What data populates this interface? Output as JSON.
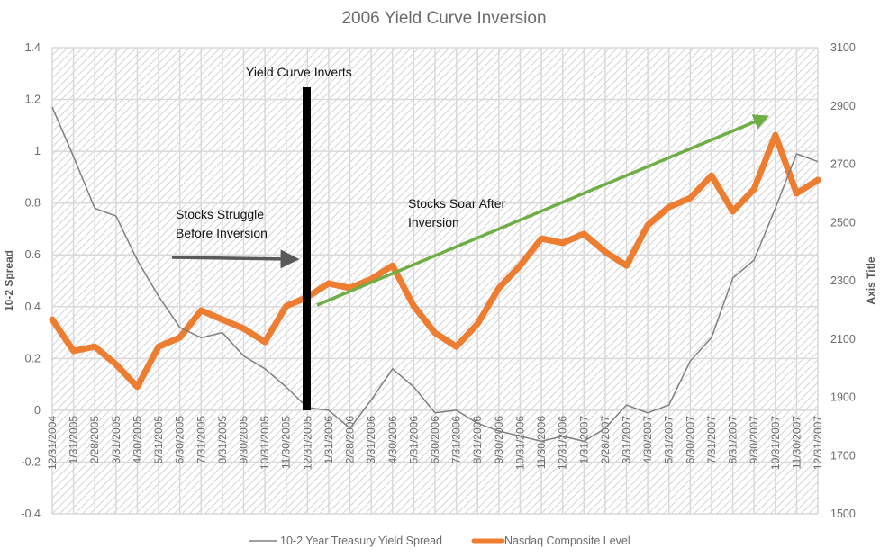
{
  "chart_data": {
    "type": "line",
    "title": "2006 Yield Curve Inversion",
    "xlabel": "",
    "ylabel": "10-2 Spread",
    "y2label": "Axis Title",
    "ylim": [
      -0.4,
      1.4
    ],
    "y2lim": [
      1500,
      3100
    ],
    "yticks": [
      "1.4",
      "1.2",
      "1",
      "0.8",
      "0.6",
      "0.4",
      "0.2",
      "0",
      "-0.2",
      "-0.4"
    ],
    "y2ticks": [
      "3100",
      "2900",
      "2700",
      "2500",
      "2300",
      "2100",
      "1900",
      "1700",
      "1500"
    ],
    "grid": true,
    "legend_position": "bottom",
    "x": [
      "12/31/2004",
      "1/31/2005",
      "2/28/2005",
      "3/31/2005",
      "4/30/2005",
      "5/31/2005",
      "6/30/2005",
      "7/31/2005",
      "8/31/2005",
      "9/30/2005",
      "10/31/2005",
      "11/30/2005",
      "12/31/2005",
      "1/31/2006",
      "2/28/2006",
      "3/31/2006",
      "4/30/2006",
      "5/31/2006",
      "6/30/2006",
      "7/31/2006",
      "8/31/2006",
      "9/30/2006",
      "10/31/2006",
      "11/30/2006",
      "12/31/2006",
      "1/31/2007",
      "2/28/2007",
      "3/31/2007",
      "4/30/2007",
      "5/31/2007",
      "6/30/2007",
      "7/31/2007",
      "8/31/2007",
      "9/30/2007",
      "10/31/2007",
      "11/30/2007",
      "12/31/2007"
    ],
    "series": [
      {
        "name": "10-2 Year Treasury Yield Spread",
        "axis": "left",
        "color": "#7f7f7f",
        "values": [
          1.17,
          0.98,
          0.78,
          0.75,
          0.58,
          0.44,
          0.32,
          0.28,
          0.3,
          0.21,
          0.16,
          0.09,
          0.01,
          0.0,
          -0.07,
          0.04,
          0.16,
          0.09,
          -0.01,
          0.0,
          -0.05,
          -0.08,
          -0.1,
          -0.12,
          -0.1,
          -0.12,
          -0.07,
          0.02,
          -0.01,
          0.02,
          0.19,
          0.28,
          0.51,
          0.58,
          0.78,
          0.99,
          0.96
        ]
      },
      {
        "name": "Nasdaq Composite Level",
        "axis": "right",
        "color": "#ed7d31",
        "values": [
          2167,
          2059,
          2074,
          2013,
          1936,
          2074,
          2105,
          2198,
          2167,
          2136,
          2090,
          2213,
          2244,
          2291,
          2275,
          2306,
          2352,
          2213,
          2121,
          2074,
          2152,
          2275,
          2352,
          2445,
          2430,
          2461,
          2399,
          2352,
          2491,
          2553,
          2584,
          2661,
          2538,
          2615,
          2800,
          2600,
          2646
        ]
      }
    ],
    "annotations": [
      {
        "text": "Yield Curve Inverts",
        "type": "vertical-bar",
        "x": "12/31/2005",
        "color": "#000000"
      },
      {
        "text_lines": [
          "Stocks Struggle",
          "Before Inversion"
        ],
        "type": "arrow",
        "color": "#595959"
      },
      {
        "text_lines": [
          "Stocks Soar After",
          "Inversion"
        ],
        "type": "arrow",
        "color": "#70ad47"
      }
    ]
  }
}
